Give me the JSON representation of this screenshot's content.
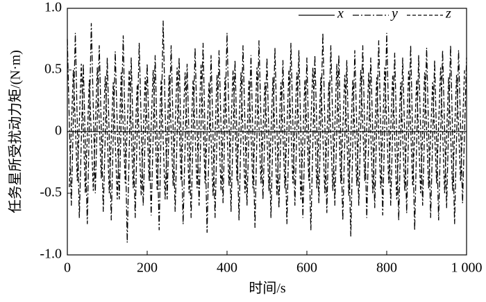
{
  "chart_data": {
    "type": "line",
    "xlabel": "时间/s",
    "ylabel": "任务星所受扰动力矩/(N·m)",
    "xlim": [
      0,
      1000
    ],
    "xticks": [
      0,
      200,
      400,
      600,
      800,
      {
        "value": 1000,
        "label": "1 000"
      }
    ],
    "ylim": [
      -1,
      1
    ],
    "yticks": [
      {
        "value": -1,
        "label": "-1.0"
      },
      -0.5,
      0,
      0.5,
      {
        "value": 1,
        "label": "1.0"
      }
    ],
    "legend": "upper right",
    "series": [
      {
        "name": "x",
        "color": "#000000",
        "style": "solid",
        "x": [
          0,
          1000
        ],
        "values": [
          0,
          0
        ]
      },
      {
        "name": "y",
        "color": "#000000",
        "style": "dashdot",
        "x": [
          0,
          10,
          20,
          30,
          40,
          50,
          60,
          70,
          80,
          90,
          100,
          110,
          120,
          130,
          140,
          150,
          160,
          170,
          180,
          190,
          200,
          210,
          220,
          230,
          240,
          250,
          260,
          270,
          280,
          290,
          300,
          310,
          320,
          330,
          340,
          350,
          360,
          370,
          380,
          390,
          400,
          410,
          420,
          430,
          440,
          450,
          460,
          470,
          480,
          490,
          500,
          510,
          520,
          530,
          540,
          550,
          560,
          570,
          580,
          590,
          600,
          610,
          620,
          630,
          640,
          650,
          660,
          670,
          680,
          690,
          700,
          710,
          720,
          730,
          740,
          750,
          760,
          770,
          780,
          790,
          800,
          810,
          820,
          830,
          840,
          850,
          860,
          870,
          880,
          890,
          900,
          910,
          920,
          930,
          940,
          950,
          960,
          970,
          980,
          990,
          1000
        ],
        "values": [
          0.75,
          -0.6,
          0.8,
          -0.7,
          0.55,
          -0.75,
          0.88,
          -0.5,
          0.7,
          -0.65,
          0.6,
          -0.72,
          0.65,
          -0.55,
          0.78,
          -0.9,
          0.6,
          -0.7,
          0.72,
          -0.6,
          0.55,
          -0.68,
          0.62,
          -0.8,
          0.9,
          -0.55,
          0.7,
          -0.65,
          0.6,
          -0.75,
          0.55,
          -0.7,
          0.68,
          -0.6,
          0.72,
          -0.82,
          0.62,
          -0.7,
          0.66,
          -0.58,
          0.8,
          -0.65,
          0.58,
          -0.72,
          0.7,
          -0.6,
          0.62,
          -0.78,
          0.74,
          -0.55,
          0.6,
          -0.7,
          0.68,
          -0.62,
          0.58,
          -0.75,
          0.72,
          -0.6,
          0.66,
          -0.7,
          0.6,
          -0.8,
          0.62,
          -0.58,
          0.8,
          -0.66,
          0.7,
          -0.6,
          0.62,
          -0.72,
          0.58,
          -0.85,
          0.66,
          -0.6,
          0.7,
          -0.7,
          0.6,
          -0.62,
          0.74,
          -0.68,
          0.8,
          -0.6,
          0.64,
          -0.72,
          0.6,
          -0.66,
          0.7,
          -0.8,
          0.62,
          -0.6,
          0.68,
          -0.7,
          0.58,
          -0.72,
          0.66,
          -0.62,
          0.7,
          -0.75,
          0.66,
          -0.58,
          0.6
        ]
      },
      {
        "name": "z",
        "color": "#000000",
        "style": "dashed",
        "x": [
          5,
          15,
          25,
          35,
          45,
          55,
          65,
          75,
          85,
          95,
          105,
          115,
          125,
          135,
          145,
          155,
          165,
          175,
          185,
          195,
          205,
          215,
          225,
          235,
          245,
          255,
          265,
          275,
          285,
          295,
          305,
          315,
          325,
          335,
          345,
          355,
          365,
          375,
          385,
          395,
          405,
          415,
          425,
          435,
          445,
          455,
          465,
          475,
          485,
          495,
          505,
          515,
          525,
          535,
          545,
          555,
          565,
          575,
          585,
          595,
          605,
          615,
          625,
          635,
          645,
          655,
          665,
          675,
          685,
          695,
          705,
          715,
          725,
          735,
          745,
          755,
          765,
          775,
          785,
          795,
          805,
          815,
          825,
          835,
          845,
          855,
          865,
          875,
          885,
          895,
          905,
          915,
          925,
          935,
          945,
          955,
          965,
          975,
          985,
          995
        ],
        "values": [
          -0.45,
          0.5,
          -0.4,
          0.55,
          -0.5,
          0.42,
          -0.48,
          0.52,
          -0.38,
          0.45,
          -0.5,
          0.4,
          -0.55,
          0.48,
          -0.42,
          0.5,
          -0.46,
          0.38,
          -0.52,
          0.44,
          -0.4,
          0.5,
          -0.48,
          0.42,
          -0.55,
          0.46,
          -0.44,
          0.52,
          -0.4,
          0.48,
          -0.5,
          0.42,
          -0.46,
          0.55,
          -0.42,
          0.4,
          -0.52,
          0.46,
          -0.48,
          0.44,
          -0.44,
          0.5,
          -0.4,
          0.48,
          -0.5,
          0.42,
          -0.46,
          0.52,
          -0.42,
          0.4,
          -0.48,
          0.44,
          -0.52,
          0.4,
          -0.46,
          0.5,
          -0.42,
          0.48,
          -0.55,
          0.42,
          -0.4,
          0.52,
          -0.46,
          0.44,
          -0.5,
          0.4,
          -0.48,
          0.55,
          -0.42,
          0.46,
          -0.52,
          0.42,
          -0.44,
          0.5,
          -0.4,
          0.48,
          -0.5,
          0.44,
          -0.46,
          0.52,
          -0.42,
          0.46,
          -0.55,
          0.4,
          -0.48,
          0.5,
          -0.44,
          0.42,
          -0.5,
          0.48,
          -0.46,
          0.4,
          -0.42,
          0.52,
          -0.5,
          0.44,
          -0.48,
          0.46,
          -0.4,
          0.5
        ]
      }
    ]
  }
}
